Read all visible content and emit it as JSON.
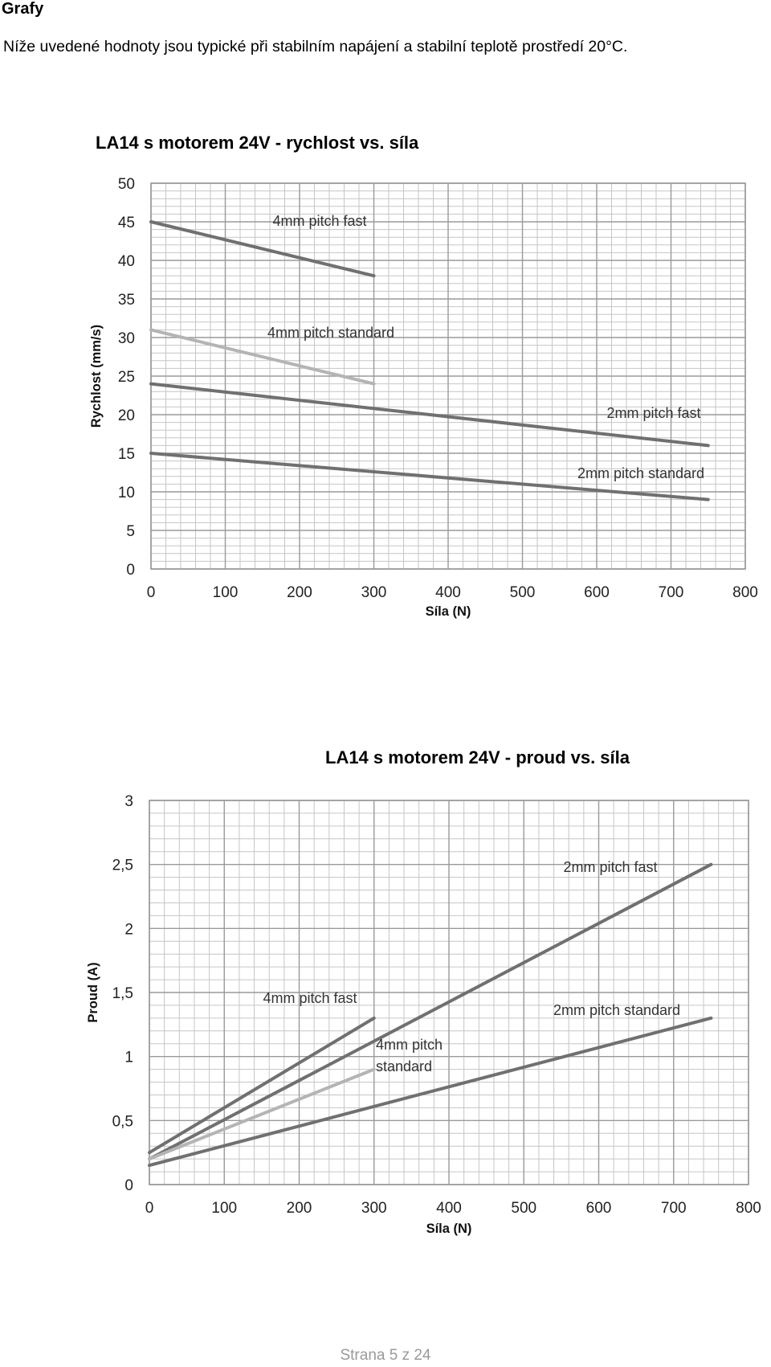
{
  "page": {
    "heading": "Grafy",
    "intro": "Níže uvedené hodnoty jsou typické při stabilním napájení a stabilní teplotě prostředí 20°C.",
    "footer": "Strana 5 z 24"
  },
  "colors": {
    "grid_major": "#9a9a9a",
    "grid_minor": "#c6c6c6",
    "series_dark": "#707070",
    "series_light": "#b4b4b4"
  },
  "chart_data": [
    {
      "type": "line",
      "title": "LA14 s motorem 24V - rychlost vs. síla",
      "xlabel": "Síla (N)",
      "ylabel": "Rychlost (mm/s)",
      "xlim": [
        0,
        800
      ],
      "ylim": [
        0,
        50
      ],
      "xticks": [
        "0",
        "100",
        "200",
        "300",
        "400",
        "500",
        "600",
        "700",
        "800"
      ],
      "yticks": [
        "0",
        "5",
        "10",
        "15",
        "20",
        "25",
        "30",
        "35",
        "40",
        "45",
        "50"
      ],
      "grid": true,
      "series": [
        {
          "name": "4mm pitch fast",
          "color": "series_dark",
          "x": [
            0,
            300
          ],
          "y": [
            45,
            38
          ]
        },
        {
          "name": "4mm pitch standard",
          "color": "series_light",
          "x": [
            0,
            300
          ],
          "y": [
            31,
            24
          ]
        },
        {
          "name": "2mm pitch fast",
          "color": "series_dark",
          "x": [
            0,
            750
          ],
          "y": [
            24,
            16
          ]
        },
        {
          "name": "2mm pitch standard",
          "color": "series_dark",
          "x": [
            0,
            750
          ],
          "y": [
            15,
            9
          ]
        }
      ]
    },
    {
      "type": "line",
      "title": "LA14 s motorem 24V - proud vs. síla",
      "xlabel": "Síla (N)",
      "ylabel": "Proud (A)",
      "xlim": [
        0,
        800
      ],
      "ylim": [
        0,
        3
      ],
      "xticks": [
        "0",
        "100",
        "200",
        "300",
        "400",
        "500",
        "600",
        "700",
        "800"
      ],
      "yticks": [
        "0",
        "0,5",
        "1",
        "1,5",
        "2",
        "2,5",
        "3"
      ],
      "grid": true,
      "series": [
        {
          "name": "4mm pitch fast",
          "color": "series_dark",
          "x": [
            0,
            300
          ],
          "y": [
            0.25,
            1.3
          ]
        },
        {
          "name": "2mm pitch fast",
          "color": "series_dark",
          "x": [
            0,
            750
          ],
          "y": [
            0.2,
            2.5
          ]
        },
        {
          "name": "4mm pitch standard",
          "color": "series_light",
          "x": [
            0,
            300
          ],
          "y": [
            0.2,
            0.9
          ]
        },
        {
          "name": "2mm pitch standard",
          "color": "series_dark",
          "x": [
            0,
            750
          ],
          "y": [
            0.15,
            1.3
          ]
        }
      ]
    }
  ]
}
